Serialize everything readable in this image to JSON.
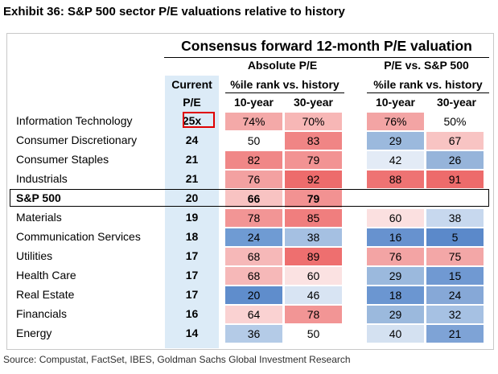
{
  "title": "Exhibit 36: S&P 500 sector P/E valuations relative to history",
  "subtitle": "Consensus forward 12-month P/E valuation",
  "headers": {
    "absolute": "Absolute P/E",
    "relative": "P/E vs. S&P 500",
    "current_line1": "Current",
    "current_line2": "P/E",
    "pctile_abs": "%ile rank vs. history",
    "pctile_rel": "%ile rank vs. history",
    "ten_year_abs": "10-year",
    "thirty_year_abs": "30-year",
    "ten_year_rel": "10-year",
    "thirty_year_rel": "30-year"
  },
  "rows": [
    {
      "sector": "Information Technology",
      "pe": "25x",
      "abs10": "74%",
      "abs30": "70%",
      "rel10": "76%",
      "rel30": "50%",
      "c": [
        "#f4a9a8",
        "#f7b7b6",
        "#f3a4a4",
        "#ffffff"
      ]
    },
    {
      "sector": "Consumer Discretionary",
      "pe": "24",
      "abs10": "50",
      "abs30": "83",
      "rel10": "29",
      "rel30": "67",
      "c": [
        "#ffffff",
        "#f08585",
        "#9bb9dd",
        "#f8c4c3"
      ]
    },
    {
      "sector": "Consumer Staples",
      "pe": "21",
      "abs10": "82",
      "abs30": "79",
      "rel10": "42",
      "rel30": "26",
      "c": [
        "#f08787",
        "#f29393",
        "#e3ebf6",
        "#96b4da"
      ]
    },
    {
      "sector": "Industrials",
      "pe": "21",
      "abs10": "76",
      "abs30": "92",
      "rel10": "88",
      "rel30": "91",
      "c": [
        "#f3a1a1",
        "#ed6c6c",
        "#ee7373",
        "#ed6b6b"
      ]
    },
    {
      "sector": "S&P 500",
      "pe": "20",
      "abs10": "66",
      "abs30": "79",
      "rel10": "",
      "rel30": "",
      "c": [
        "#f8c3c2",
        "#f29292",
        "#ffffff",
        "#ffffff"
      ]
    },
    {
      "sector": "Materials",
      "pe": "19",
      "abs10": "78",
      "abs30": "85",
      "rel10": "60",
      "rel30": "38",
      "c": [
        "#f29595",
        "#f07e7e",
        "#fbe0e0",
        "#c7d8ee"
      ]
    },
    {
      "sector": "Communication Services",
      "pe": "18",
      "abs10": "24",
      "abs30": "38",
      "rel10": "16",
      "rel30": "5",
      "c": [
        "#6f9bd3",
        "#a5c0e2",
        "#6792cf",
        "#5b89ca"
      ]
    },
    {
      "sector": "Utilities",
      "pe": "17",
      "abs10": "68",
      "abs30": "89",
      "rel10": "76",
      "rel30": "75",
      "c": [
        "#f6b8b8",
        "#ee6f6f",
        "#f3a4a4",
        "#f3a7a7"
      ]
    },
    {
      "sector": "Health Care",
      "pe": "17",
      "abs10": "68",
      "abs30": "60",
      "rel10": "29",
      "rel30": "15",
      "c": [
        "#f6b8b8",
        "#fbe2e2",
        "#9bb9dd",
        "#7099d2"
      ]
    },
    {
      "sector": "Real Estate",
      "pe": "17",
      "abs10": "20",
      "abs30": "46",
      "rel10": "18",
      "rel30": "24",
      "c": [
        "#5f8dcc",
        "#d8e4f3",
        "#6b96d1",
        "#86a8d7"
      ]
    },
    {
      "sector": "Financials",
      "pe": "16",
      "abs10": "64",
      "abs30": "78",
      "rel10": "29",
      "rel30": "32",
      "c": [
        "#fad2d2",
        "#f29595",
        "#9bb9dd",
        "#a6c1e3"
      ]
    },
    {
      "sector": "Energy",
      "pe": "14",
      "abs10": "36",
      "abs30": "50",
      "rel10": "40",
      "rel30": "21",
      "c": [
        "#b4cbe7",
        "#ffffff",
        "#d4e1f1",
        "#7ea3d6"
      ]
    }
  ],
  "source": "Source: Compustat, FactSet, IBES, Goldman Sachs Global Investment Research"
}
